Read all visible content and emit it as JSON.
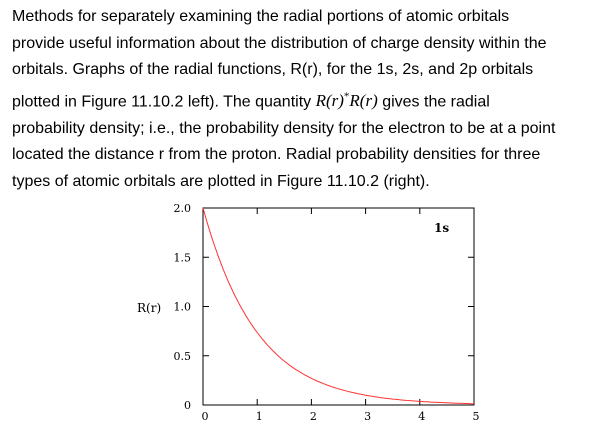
{
  "paragraph": {
    "line1": "Methods for separately examining the radial portions of atomic orbitals",
    "line2": "provide useful information about the distribution of charge density within the",
    "line3": "orbitals. Graphs of the radial functions, R(r), for the 1s, 2s, and 2p orbitals",
    "line4_before": "plotted in Figure 11.10.2 left). The quantity ",
    "line4_math_a": "R(r)",
    "line4_math_sup": "*",
    "line4_math_b": "R(r)",
    "line4_after": " gives the radial",
    "line5": "probability density; i.e., the probability density for the electron to be at a point",
    "line6": "located the distance r from the proton. Radial probability densities for three",
    "line7": "types of atomic orbitals are plotted in Figure 11.10.2 (right)."
  },
  "chart_data": {
    "type": "line",
    "ylabel": "R(r)",
    "xlim": [
      0,
      5
    ],
    "ylim": [
      0,
      2.0
    ],
    "x_ticks": [
      "0",
      "1",
      "2",
      "3",
      "4",
      "5"
    ],
    "y_ticks": [
      "0",
      "0.5",
      "1.0",
      "1.5",
      "2.0"
    ],
    "legend": "top-right",
    "series": [
      {
        "name": "1s",
        "color": "#ff3333",
        "x": [
          0,
          0.25,
          0.5,
          0.75,
          1.0,
          1.25,
          1.5,
          1.75,
          2.0,
          2.5,
          3.0,
          3.5,
          4.0,
          4.5,
          5.0
        ],
        "y": [
          2.0,
          1.558,
          1.213,
          0.945,
          0.736,
          0.573,
          0.446,
          0.347,
          0.271,
          0.164,
          0.1,
          0.06,
          0.037,
          0.022,
          0.013
        ]
      }
    ]
  }
}
